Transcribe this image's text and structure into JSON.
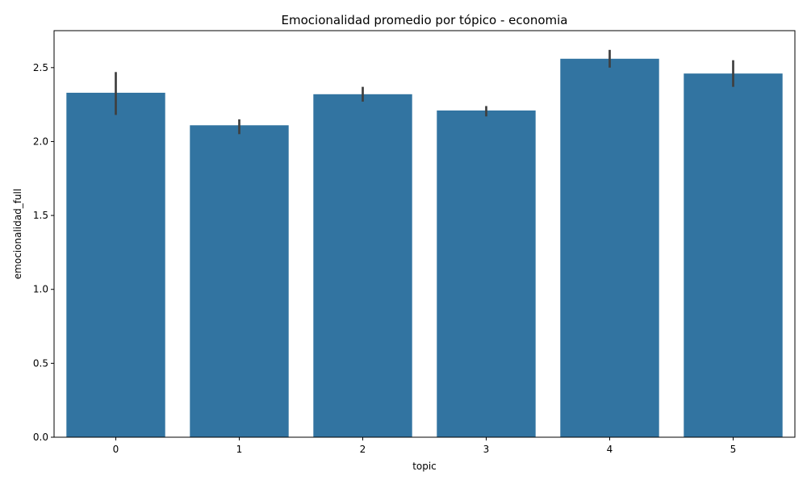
{
  "chart_data": {
    "type": "bar",
    "title": "Emocionalidad promedio por tópico - economia",
    "xlabel": "topic",
    "ylabel": "emocionalidad_full",
    "categories": [
      "0",
      "1",
      "2",
      "3",
      "4",
      "5"
    ],
    "values": [
      2.33,
      2.11,
      2.32,
      2.21,
      2.56,
      2.46
    ],
    "error_low": [
      2.18,
      2.05,
      2.27,
      2.17,
      2.5,
      2.37
    ],
    "error_high": [
      2.47,
      2.15,
      2.37,
      2.24,
      2.62,
      2.55
    ],
    "ylim": [
      0,
      2.75
    ],
    "yticks": [
      "0.0",
      "0.5",
      "1.0",
      "1.5",
      "2.0",
      "2.5"
    ],
    "grid": false,
    "bar_color": "#3274a1",
    "error_color": "#3f3f3f"
  }
}
